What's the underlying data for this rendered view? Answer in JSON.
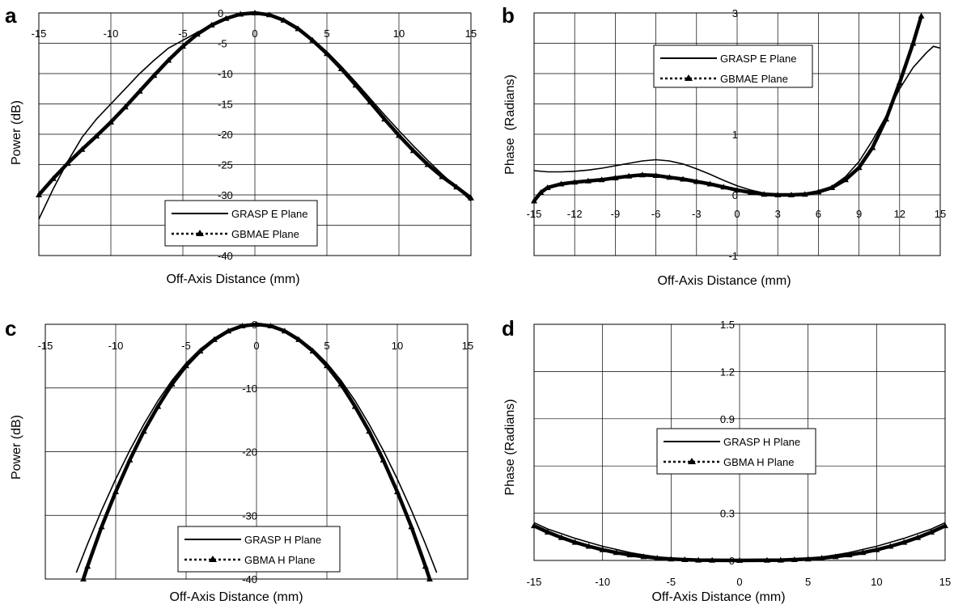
{
  "chart_data": [
    {
      "panel": "a",
      "type": "line",
      "xlabel": "Off-Axis Distance (mm)",
      "ylabel": "Power (dB)",
      "xlim": [
        -15,
        15
      ],
      "ylim": [
        -40,
        0
      ],
      "xticks": [
        -15,
        -10,
        -5,
        0,
        5,
        10,
        15
      ],
      "yticks": [
        0,
        -5,
        -10,
        -15,
        -20,
        -25,
        -30,
        -40
      ],
      "x_axis_position": "top",
      "grid": true,
      "legend_position": "bottom-center",
      "series": [
        {
          "name": "GRASP E Plane",
          "style": "solid",
          "points": [
            [
              -15,
              -34
            ],
            [
              -14,
              -29
            ],
            [
              -13,
              -24.5
            ],
            [
              -12,
              -20.5
            ],
            [
              -11,
              -17.5
            ],
            [
              -10,
              -15
            ],
            [
              -9,
              -12.5
            ],
            [
              -8,
              -10
            ],
            [
              -7,
              -7.8
            ],
            [
              -6,
              -5.8
            ],
            [
              -5,
              -4.5
            ],
            [
              -4,
              -3.2
            ],
            [
              -3,
              -2
            ],
            [
              -2,
              -1
            ],
            [
              -1,
              -0.3
            ],
            [
              0,
              0
            ],
            [
              1,
              -0.4
            ],
            [
              2,
              -1.3
            ],
            [
              3,
              -2.6
            ],
            [
              4,
              -4.3
            ],
            [
              5,
              -6.4
            ],
            [
              6,
              -8.8
            ],
            [
              7,
              -11.4
            ],
            [
              8,
              -14.1
            ],
            [
              9,
              -16.8
            ],
            [
              10,
              -19.4
            ],
            [
              11,
              -21.9
            ],
            [
              12,
              -24.3
            ],
            [
              13,
              -26.6
            ],
            [
              14,
              -28.7
            ],
            [
              15,
              -31
            ]
          ]
        },
        {
          "name": "GBMAE Plane",
          "style": "dotted-triangle",
          "points": [
            [
              -15,
              -30
            ],
            [
              -14,
              -27.3
            ],
            [
              -13,
              -24.8
            ],
            [
              -12,
              -22.5
            ],
            [
              -11,
              -20.3
            ],
            [
              -10,
              -18
            ],
            [
              -9,
              -15.5
            ],
            [
              -8,
              -12.9
            ],
            [
              -7,
              -10.3
            ],
            [
              -6,
              -7.8
            ],
            [
              -5,
              -5.5
            ],
            [
              -4,
              -3.5
            ],
            [
              -3,
              -2
            ],
            [
              -2,
              -0.9
            ],
            [
              -1,
              -0.2
            ],
            [
              0,
              0
            ],
            [
              1,
              -0.3
            ],
            [
              2,
              -1.2
            ],
            [
              3,
              -2.6
            ],
            [
              4,
              -4.5
            ],
            [
              5,
              -6.7
            ],
            [
              6,
              -9.2
            ],
            [
              7,
              -11.9
            ],
            [
              8,
              -14.7
            ],
            [
              9,
              -17.5
            ],
            [
              10,
              -20.2
            ],
            [
              11,
              -22.7
            ],
            [
              12,
              -25
            ],
            [
              13,
              -27
            ],
            [
              14,
              -28.7
            ],
            [
              15,
              -30.5
            ]
          ]
        }
      ]
    },
    {
      "panel": "b",
      "type": "line",
      "xlabel": "Off-Axis Distance (mm)",
      "ylabel": "Phase  (Radians)",
      "xlim": [
        -15,
        15
      ],
      "ylim": [
        -1,
        3
      ],
      "xticks": [
        -15,
        -12,
        -9,
        -6,
        -3,
        0,
        3,
        6,
        9,
        12,
        15
      ],
      "yticks": [
        3,
        1,
        0,
        -1
      ],
      "grid": true,
      "legend_position": "top-center",
      "series": [
        {
          "name": "GRASP E Plane",
          "style": "solid",
          "points": [
            [
              -15,
              0.4
            ],
            [
              -14,
              0.38
            ],
            [
              -13,
              0.38
            ],
            [
              -12,
              0.39
            ],
            [
              -11,
              0.41
            ],
            [
              -10,
              0.44
            ],
            [
              -9,
              0.48
            ],
            [
              -8,
              0.52
            ],
            [
              -7,
              0.56
            ],
            [
              -6,
              0.58
            ],
            [
              -5,
              0.56
            ],
            [
              -4,
              0.51
            ],
            [
              -3,
              0.43
            ],
            [
              -2,
              0.34
            ],
            [
              -1,
              0.24
            ],
            [
              0,
              0.15
            ],
            [
              1,
              0.08
            ],
            [
              2,
              0.03
            ],
            [
              3,
              0.01
            ],
            [
              4,
              0
            ],
            [
              5,
              0.01
            ],
            [
              6,
              0.05
            ],
            [
              7,
              0.14
            ],
            [
              8,
              0.3
            ],
            [
              9,
              0.55
            ],
            [
              10,
              0.9
            ],
            [
              11,
              1.3
            ],
            [
              12,
              1.75
            ],
            [
              13,
              2.1
            ],
            [
              14,
              2.35
            ],
            [
              14.5,
              2.45
            ],
            [
              15,
              2.42
            ]
          ]
        },
        {
          "name": "GBMAE Plane",
          "style": "dotted-triangle",
          "points": [
            [
              -15,
              -0.1
            ],
            [
              -14.5,
              0.04
            ],
            [
              -14,
              0.12
            ],
            [
              -13,
              0.18
            ],
            [
              -12,
              0.21
            ],
            [
              -11,
              0.23
            ],
            [
              -10,
              0.25
            ],
            [
              -9,
              0.28
            ],
            [
              -8,
              0.31
            ],
            [
              -7,
              0.33
            ],
            [
              -6,
              0.32
            ],
            [
              -5,
              0.29
            ],
            [
              -4,
              0.26
            ],
            [
              -3,
              0.22
            ],
            [
              -2,
              0.18
            ],
            [
              -1,
              0.13
            ],
            [
              0,
              0.08
            ],
            [
              1,
              0.04
            ],
            [
              2,
              0.01
            ],
            [
              3,
              0
            ],
            [
              4,
              0
            ],
            [
              5,
              0.01
            ],
            [
              6,
              0.05
            ],
            [
              7,
              0.12
            ],
            [
              8,
              0.25
            ],
            [
              9,
              0.45
            ],
            [
              10,
              0.78
            ],
            [
              11,
              1.25
            ],
            [
              12,
              1.85
            ],
            [
              13,
              2.5
            ],
            [
              13.6,
              2.95
            ]
          ]
        }
      ]
    },
    {
      "panel": "c",
      "type": "line",
      "xlabel": "Off-Axis Distance (mm)",
      "ylabel": "Power (dB)",
      "xlim": [
        -15,
        15
      ],
      "ylim": [
        -40,
        0
      ],
      "xticks": [
        -15,
        -10,
        -5,
        0,
        5,
        10,
        15
      ],
      "yticks": [
        0,
        -10,
        -20,
        -30,
        -40
      ],
      "x_axis_position": "top",
      "grid": true,
      "legend_position": "bottom-center",
      "series": [
        {
          "name": "GRASP H Plane",
          "style": "solid",
          "points": [
            [
              -12.8,
              -39
            ],
            [
              -12,
              -34.5
            ],
            [
              -11,
              -29.2
            ],
            [
              -10,
              -24.3
            ],
            [
              -9,
              -19.8
            ],
            [
              -8,
              -15.7
            ],
            [
              -7,
              -12
            ],
            [
              -6,
              -8.8
            ],
            [
              -5,
              -6.1
            ],
            [
              -4,
              -3.9
            ],
            [
              -3,
              -2.2
            ],
            [
              -2,
              -1
            ],
            [
              -1,
              -0.25
            ],
            [
              0,
              0
            ],
            [
              1,
              -0.25
            ],
            [
              2,
              -1
            ],
            [
              3,
              -2.2
            ],
            [
              4,
              -3.9
            ],
            [
              5,
              -6.1
            ],
            [
              6,
              -8.8
            ],
            [
              7,
              -12
            ],
            [
              8,
              -15.7
            ],
            [
              9,
              -19.8
            ],
            [
              10,
              -24.3
            ],
            [
              11,
              -29.2
            ],
            [
              12,
              -34.5
            ],
            [
              12.8,
              -39
            ]
          ]
        },
        {
          "name": "GBMA H Plane",
          "style": "dotted-triangle",
          "points": [
            [
              -12.3,
              -40
            ],
            [
              -12,
              -38
            ],
            [
              -11,
              -31.8
            ],
            [
              -10,
              -26.3
            ],
            [
              -9,
              -21.3
            ],
            [
              -8,
              -16.8
            ],
            [
              -7,
              -12.9
            ],
            [
              -6,
              -9.4
            ],
            [
              -5,
              -6.5
            ],
            [
              -4,
              -4.2
            ],
            [
              -3,
              -2.4
            ],
            [
              -2,
              -1.05
            ],
            [
              -1,
              -0.26
            ],
            [
              0,
              0
            ],
            [
              1,
              -0.26
            ],
            [
              2,
              -1.05
            ],
            [
              3,
              -2.4
            ],
            [
              4,
              -4.2
            ],
            [
              5,
              -6.5
            ],
            [
              6,
              -9.4
            ],
            [
              7,
              -12.9
            ],
            [
              8,
              -16.8
            ],
            [
              9,
              -21.3
            ],
            [
              10,
              -26.3
            ],
            [
              11,
              -31.8
            ],
            [
              12,
              -38
            ],
            [
              12.3,
              -40
            ]
          ]
        }
      ]
    },
    {
      "panel": "d",
      "type": "line",
      "xlabel": "Off-Axis Distance (mm)",
      "ylabel": "Phase (Radians)",
      "xlim": [
        -15,
        15
      ],
      "ylim": [
        0,
        1.5
      ],
      "xticks": [
        -15,
        -10,
        -5,
        0,
        5,
        10,
        15
      ],
      "yticks": [
        1.5,
        1.2,
        0.9,
        0.3,
        0
      ],
      "grid": true,
      "legend_position": "center",
      "series": [
        {
          "name": "GRASP H Plane",
          "style": "solid",
          "points": [
            [
              -15,
              0.24
            ],
            [
              -14,
              0.2
            ],
            [
              -13,
              0.17
            ],
            [
              -12,
              0.14
            ],
            [
              -11,
              0.115
            ],
            [
              -10,
              0.09
            ],
            [
              -9,
              0.07
            ],
            [
              -8,
              0.05
            ],
            [
              -7,
              0.035
            ],
            [
              -6,
              0.022
            ],
            [
              -5,
              0.013
            ],
            [
              -4,
              0.007
            ],
            [
              -3,
              0.003
            ],
            [
              -2,
              0.001
            ],
            [
              0,
              0
            ],
            [
              2,
              0.001
            ],
            [
              3,
              0.003
            ],
            [
              4,
              0.007
            ],
            [
              5,
              0.013
            ],
            [
              6,
              0.022
            ],
            [
              7,
              0.035
            ],
            [
              8,
              0.05
            ],
            [
              9,
              0.07
            ],
            [
              10,
              0.09
            ],
            [
              11,
              0.115
            ],
            [
              12,
              0.14
            ],
            [
              13,
              0.17
            ],
            [
              14,
              0.2
            ],
            [
              15,
              0.24
            ]
          ]
        },
        {
          "name": "GBMA H Plane",
          "style": "dotted-triangle",
          "points": [
            [
              -15,
              0.22
            ],
            [
              -14,
              0.18
            ],
            [
              -13,
              0.145
            ],
            [
              -12,
              0.115
            ],
            [
              -11,
              0.09
            ],
            [
              -10,
              0.068
            ],
            [
              -9,
              0.05
            ],
            [
              -8,
              0.035
            ],
            [
              -7,
              0.024
            ],
            [
              -6,
              0.015
            ],
            [
              -5,
              0.009
            ],
            [
              -4,
              0.005
            ],
            [
              -3,
              0.002
            ],
            [
              -2,
              0.001
            ],
            [
              0,
              0
            ],
            [
              2,
              0.001
            ],
            [
              3,
              0.002
            ],
            [
              4,
              0.005
            ],
            [
              5,
              0.009
            ],
            [
              6,
              0.015
            ],
            [
              7,
              0.024
            ],
            [
              8,
              0.035
            ],
            [
              9,
              0.05
            ],
            [
              10,
              0.068
            ],
            [
              11,
              0.09
            ],
            [
              12,
              0.115
            ],
            [
              13,
              0.145
            ],
            [
              14,
              0.18
            ],
            [
              15,
              0.22
            ]
          ]
        }
      ]
    }
  ]
}
